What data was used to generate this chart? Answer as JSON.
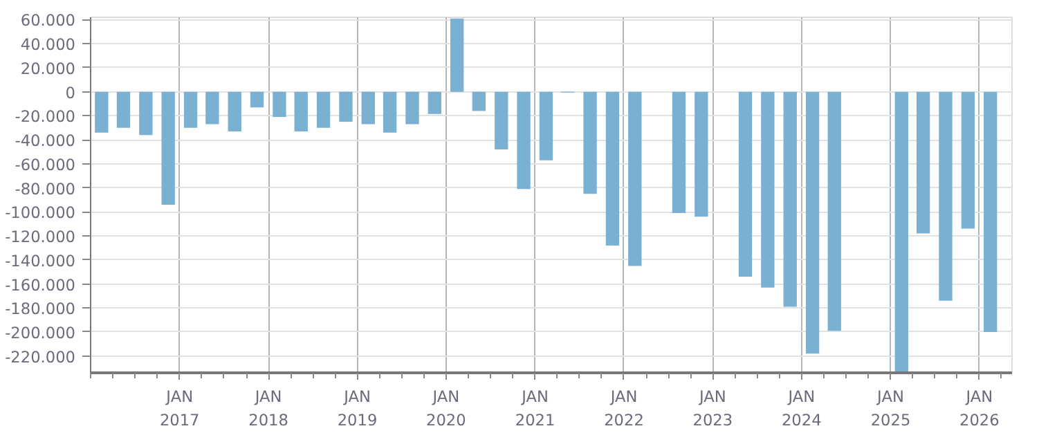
{
  "chart_data": {
    "type": "bar",
    "color": "#7ab1d3",
    "x": [
      "2016-02-15",
      "2016-05-15",
      "2016-08-15",
      "2016-11-15",
      "2017-02-15",
      "2017-05-15",
      "2017-08-15",
      "2017-11-15",
      "2018-02-15",
      "2018-05-15",
      "2018-08-15",
      "2018-11-15",
      "2019-02-15",
      "2019-05-15",
      "2019-08-15",
      "2019-11-15",
      "2020-02-15",
      "2020-05-15",
      "2020-08-15",
      "2020-11-15",
      "2021-02-15",
      "2021-05-15",
      "2021-08-15",
      "2021-11-15",
      "2022-02-15",
      "2022-05-15",
      "2022-08-15",
      "2022-11-15",
      "2023-02-15",
      "2023-05-15",
      "2023-08-15",
      "2023-11-15",
      "2024-02-15",
      "2024-05-15",
      "2024-08-15",
      "2024-11-15",
      "2025-02-15",
      "2025-05-15",
      "2025-08-15",
      "2025-11-15",
      "2026-02-15"
    ],
    "values": [
      -34000,
      -30000,
      -36000,
      -94000,
      -30000,
      -27000,
      -33000,
      -13000,
      -21000,
      -33000,
      -30000,
      -25000,
      -27000,
      -34000,
      -27000,
      -18500,
      61000,
      -16000,
      -48000,
      -81000,
      -57000,
      -700,
      -85000,
      -128000,
      -145000,
      null,
      -101000,
      -104000,
      null,
      -154000,
      -163000,
      -179000,
      -218000,
      -199000,
      null,
      null,
      -233000,
      -118000,
      -174000,
      -114000,
      -200000
    ],
    "xlim": [
      "2016-01-01",
      "2026-05-15"
    ],
    "xticks": [
      {
        "value": "2017-01-01",
        "label": "JAN\n2017"
      },
      {
        "value": "2018-01-01",
        "label": "JAN\n2018"
      },
      {
        "value": "2019-01-01",
        "label": "JAN\n2019"
      },
      {
        "value": "2020-01-01",
        "label": "JAN\n2020"
      },
      {
        "value": "2021-01-01",
        "label": "JAN\n2021"
      },
      {
        "value": "2022-01-01",
        "label": "JAN\n2022"
      },
      {
        "value": "2023-01-01",
        "label": "JAN\n2023"
      },
      {
        "value": "2024-01-01",
        "label": "JAN\n2024"
      },
      {
        "value": "2025-01-01",
        "label": "JAN\n2025"
      },
      {
        "value": "2026-01-01",
        "label": "JAN\n2026"
      }
    ],
    "ylim": [
      -234000,
      62000
    ],
    "yticks": [
      {
        "value": 60000,
        "label": "60.000"
      },
      {
        "value": 40000,
        "label": "40.000"
      },
      {
        "value": 20000,
        "label": "20.000"
      },
      0,
      {
        "value": -20000,
        "label": "-20.000"
      },
      {
        "value": -40000,
        "label": "-40.000"
      },
      {
        "value": -60000,
        "label": "-60.000"
      },
      {
        "value": -80000,
        "label": "-80.000"
      },
      {
        "value": -100000,
        "label": "-100.000"
      },
      {
        "value": -120000,
        "label": "-120.000"
      },
      {
        "value": -140000,
        "label": "-140.000"
      },
      {
        "value": -160000,
        "label": "-160.000"
      },
      {
        "value": -180000,
        "label": "-180.000"
      },
      {
        "value": -200000,
        "label": "-200.000"
      },
      {
        "value": -220000,
        "label": "-220.000"
      }
    ],
    "grid": true
  }
}
